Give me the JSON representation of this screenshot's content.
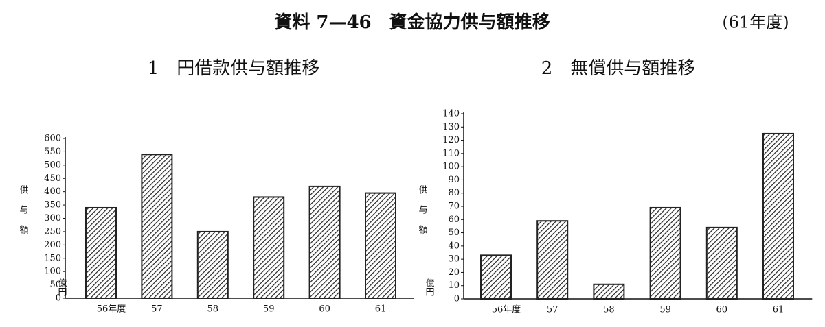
{
  "title": "資料 7—46　資金協力供与額推移",
  "subtitle": "(61年度)",
  "chart_data": [
    {
      "type": "bar",
      "title": "1　円借款供与額推移",
      "y_label": "供与額",
      "y_unit": "億円",
      "categories": [
        "56年度",
        "57",
        "58",
        "59",
        "60",
        "61"
      ],
      "values": [
        340,
        540,
        250,
        380,
        420,
        395
      ],
      "color": "#222222",
      "ylim": [
        0,
        600
      ],
      "yticks": [
        0,
        50,
        100,
        150,
        200,
        250,
        300,
        350,
        400,
        450,
        500,
        550,
        600
      ],
      "grid": false
    },
    {
      "type": "bar",
      "title": "2　無償供与額推移",
      "y_label": "供与額",
      "y_unit": "億円",
      "categories": [
        "56年度",
        "57",
        "58",
        "59",
        "60",
        "61"
      ],
      "values": [
        33,
        59,
        11,
        69,
        54,
        125
      ],
      "color": "#222222",
      "ylim": [
        0,
        140
      ],
      "yticks": [
        0,
        10,
        20,
        30,
        40,
        50,
        60,
        70,
        80,
        90,
        100,
        110,
        120,
        130,
        140
      ],
      "grid": false
    }
  ]
}
